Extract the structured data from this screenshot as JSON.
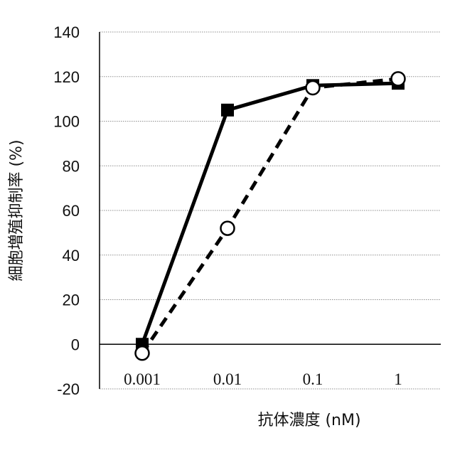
{
  "chart_data": {
    "type": "line",
    "xlabel": "抗体濃度 (nM)",
    "ylabel": "細胞増殖抑制率 (%)",
    "categories": [
      "0.001",
      "0.01",
      "0.1",
      "1"
    ],
    "ylim": [
      -20,
      140
    ],
    "yticks": [
      -20,
      0,
      20,
      40,
      60,
      80,
      100,
      120,
      140
    ],
    "grid": true,
    "series": [
      {
        "marker": "filled-square",
        "line": "solid",
        "color": "#000000",
        "values": [
          0,
          105,
          116,
          117
        ]
      },
      {
        "marker": "open-circle",
        "line": "dashed",
        "color": "#000000",
        "values": [
          -4,
          52,
          115,
          119
        ]
      }
    ]
  }
}
